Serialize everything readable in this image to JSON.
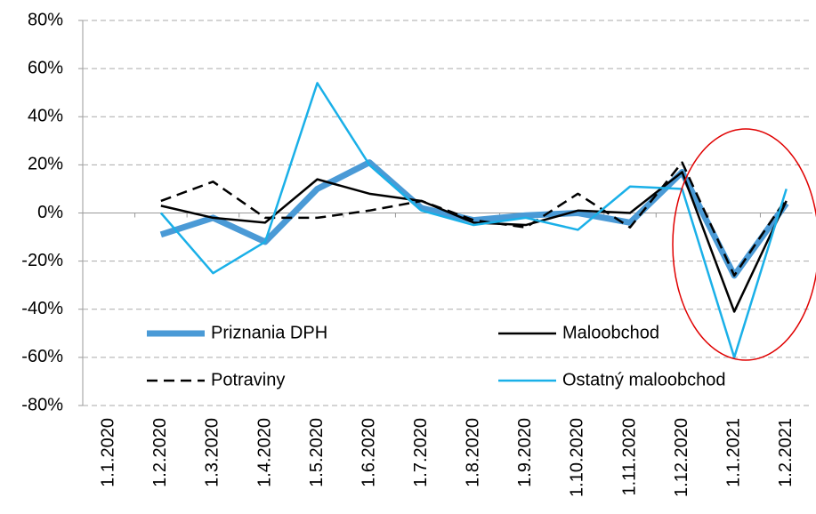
{
  "chart_data": {
    "type": "line",
    "categories": [
      "1.1.2020",
      "1.2.2020",
      "1.3.2020",
      "1.4.2020",
      "1.5.2020",
      "1.6.2020",
      "1.7.2020",
      "1.8.2020",
      "1.9.2020",
      "1.10.2020",
      "1.11.2020",
      "1.12.2020",
      "1.1.2021",
      "1.2.2021"
    ],
    "series": [
      {
        "name": "Priznania DPH",
        "color": "#4a9ad6",
        "values": [
          null,
          -9,
          -2,
          -12,
          10,
          21,
          2,
          -3,
          -1,
          0,
          -4,
          17,
          -26,
          4
        ]
      },
      {
        "name": "Maloobchod",
        "color": "#000000",
        "values": [
          null,
          3,
          -2,
          -4,
          14,
          8,
          5,
          -4,
          -5,
          1,
          0,
          17,
          -41,
          5
        ]
      },
      {
        "name": "Potraviny",
        "color": "#000000",
        "line_style": "dashed",
        "values": [
          null,
          5,
          13,
          -2,
          -2,
          1,
          5,
          -3,
          -6,
          8,
          -6,
          21,
          -26,
          6
        ]
      },
      {
        "name": "Ostatný maloobchod",
        "color": "#1ab0e8",
        "values": [
          null,
          0,
          -25,
          -12,
          54,
          20,
          1,
          -5,
          -2,
          -7,
          11,
          10,
          -60,
          10
        ]
      }
    ],
    "ylim": [
      -80,
      80
    ],
    "yticks": [
      {
        "value": -80,
        "label": "-80%"
      },
      {
        "value": -60,
        "label": "-60%"
      },
      {
        "value": -40,
        "label": "-40%"
      },
      {
        "value": -20,
        "label": "-20%"
      },
      {
        "value": 0,
        "label": "0%"
      },
      {
        "value": 20,
        "label": "20%"
      },
      {
        "value": 40,
        "label": "40%"
      },
      {
        "value": 60,
        "label": "60%"
      },
      {
        "value": 80,
        "label": "80%"
      }
    ],
    "grid": true
  }
}
